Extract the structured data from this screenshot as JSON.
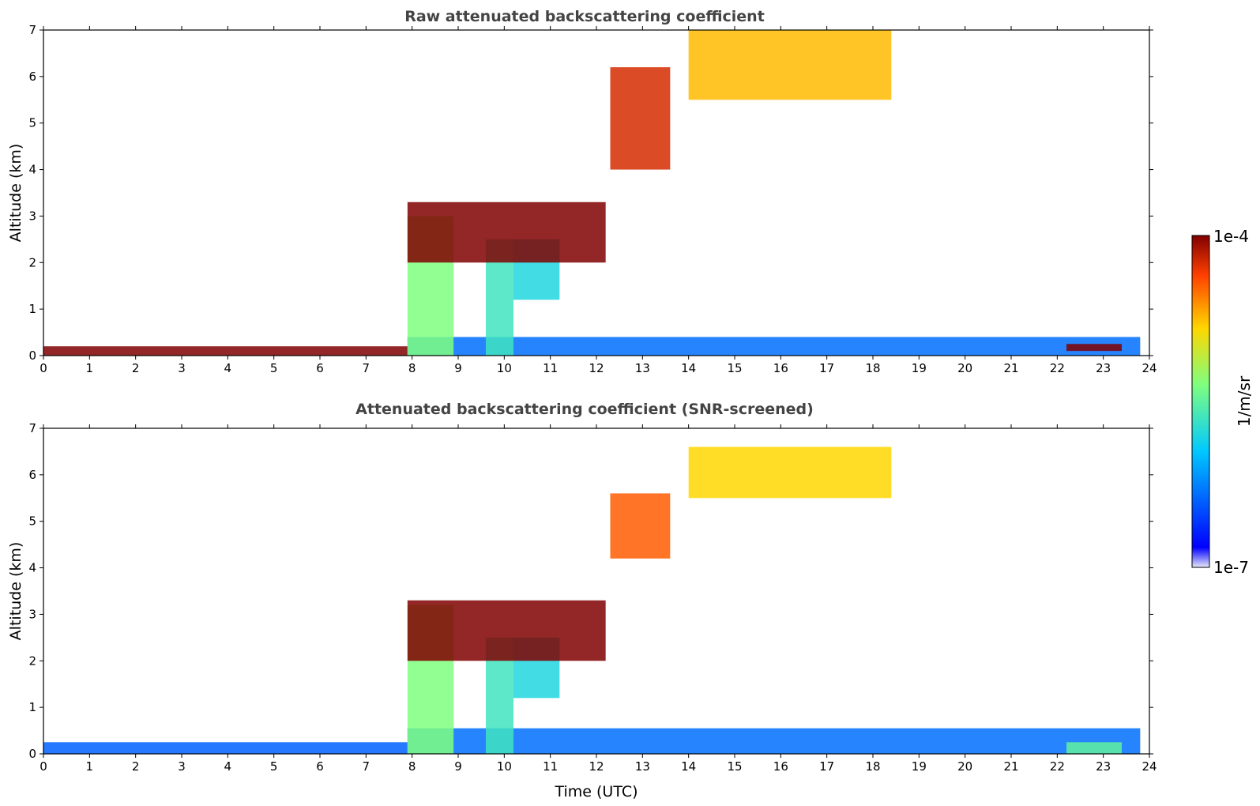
{
  "chart_data": [
    {
      "type": "heatmap",
      "title": "Raw attenuated backscattering coefficient",
      "xlabel": "",
      "ylabel": "Altitude (km)",
      "xlim": [
        0,
        24
      ],
      "ylim": [
        0,
        7
      ],
      "x_ticks": [
        "0",
        "1",
        "2",
        "3",
        "4",
        "5",
        "6",
        "7",
        "8",
        "9",
        "10",
        "11",
        "12",
        "13",
        "14",
        "15",
        "16",
        "17",
        "18",
        "19",
        "20",
        "21",
        "22",
        "23",
        "24"
      ],
      "y_ticks": [
        "0",
        "1",
        "2",
        "3",
        "4",
        "5",
        "6",
        "7"
      ],
      "features": [
        {
          "t0": 0.0,
          "t1": 7.9,
          "z0": 0.0,
          "z1": 0.2,
          "level": 1.0
        },
        {
          "t0": 7.9,
          "t1": 23.8,
          "z0": 0.0,
          "z1": 0.4,
          "level": 0.22
        },
        {
          "t0": 7.9,
          "t1": 8.9,
          "z0": 0.0,
          "z1": 3.0,
          "level": 0.55
        },
        {
          "t0": 9.6,
          "t1": 10.2,
          "z0": 0.0,
          "z1": 2.5,
          "level": 0.45
        },
        {
          "t0": 10.2,
          "t1": 11.2,
          "z0": 1.2,
          "z1": 2.5,
          "level": 0.4
        },
        {
          "t0": 7.9,
          "t1": 12.2,
          "z0": 2.0,
          "z1": 3.3,
          "level": 1.0
        },
        {
          "t0": 12.3,
          "t1": 13.6,
          "z0": 4.0,
          "z1": 6.2,
          "level": 0.92
        },
        {
          "t0": 14.0,
          "t1": 18.4,
          "z0": 5.5,
          "z1": 7.0,
          "level": 0.75
        },
        {
          "t0": 22.2,
          "t1": 23.4,
          "z0": 0.1,
          "z1": 0.25,
          "level": 1.0
        }
      ]
    },
    {
      "type": "heatmap",
      "title": "Attenuated backscattering coefficient (SNR-screened)",
      "xlabel": "Time (UTC)",
      "ylabel": "Altitude (km)",
      "xlim": [
        0,
        24
      ],
      "ylim": [
        0,
        7
      ],
      "x_ticks": [
        "0",
        "1",
        "2",
        "3",
        "4",
        "5",
        "6",
        "7",
        "8",
        "9",
        "10",
        "11",
        "12",
        "13",
        "14",
        "15",
        "16",
        "17",
        "18",
        "19",
        "20",
        "21",
        "22",
        "23",
        "24"
      ],
      "y_ticks": [
        "0",
        "1",
        "2",
        "3",
        "4",
        "5",
        "6",
        "7"
      ],
      "features": [
        {
          "t0": 0.0,
          "t1": 7.9,
          "z0": 0.0,
          "z1": 0.25,
          "level": 0.2
        },
        {
          "t0": 7.9,
          "t1": 23.8,
          "z0": 0.0,
          "z1": 0.55,
          "level": 0.22
        },
        {
          "t0": 7.9,
          "t1": 8.9,
          "z0": 0.0,
          "z1": 3.2,
          "level": 0.55
        },
        {
          "t0": 9.6,
          "t1": 10.2,
          "z0": 0.0,
          "z1": 2.5,
          "level": 0.45
        },
        {
          "t0": 10.2,
          "t1": 11.2,
          "z0": 1.2,
          "z1": 2.5,
          "level": 0.4
        },
        {
          "t0": 7.9,
          "t1": 12.2,
          "z0": 2.0,
          "z1": 3.3,
          "level": 1.0
        },
        {
          "t0": 12.3,
          "t1": 13.6,
          "z0": 4.2,
          "z1": 5.6,
          "level": 0.85
        },
        {
          "t0": 14.0,
          "t1": 18.4,
          "z0": 5.5,
          "z1": 6.6,
          "level": 0.72
        },
        {
          "t0": 22.2,
          "t1": 23.4,
          "z0": 0.0,
          "z1": 0.25,
          "level": 0.5
        }
      ]
    }
  ],
  "colorbar": {
    "max_label": "1e-4",
    "min_label": "1e-7",
    "unit_label": "1/m/sr",
    "colormap": [
      "#e8e8f8",
      "#0000ff",
      "#00c8ff",
      "#7fff7f",
      "#ffd700",
      "#ff4000",
      "#800000"
    ]
  }
}
